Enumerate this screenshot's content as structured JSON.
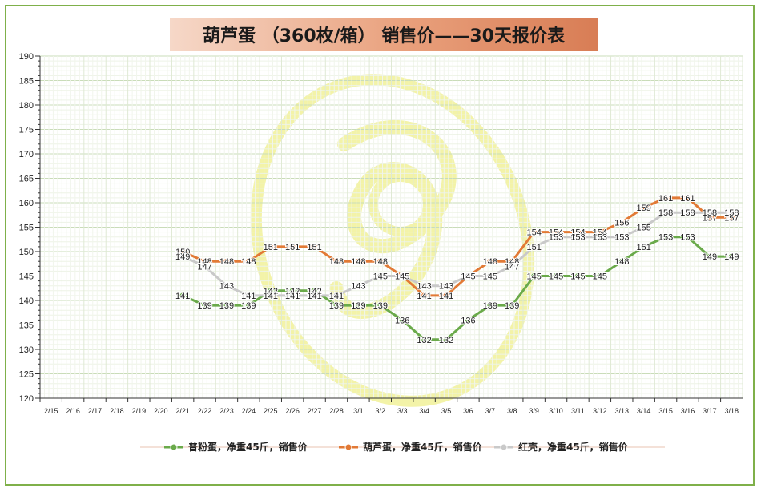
{
  "title": "葫芦蛋 （360枚/箱） 销售价——30天报价表",
  "colors": {
    "series_green": "#6aaa4a",
    "series_orange": "#e27a36",
    "series_gray": "#c9c9c9",
    "frame": "#7fb04a",
    "watermark": "#f3f3a8"
  },
  "chart_data": {
    "type": "line",
    "title": "葫芦蛋 （360枚/箱） 销售价——30天报价表",
    "xlabel": "",
    "ylabel": "",
    "ylim": [
      120,
      190
    ],
    "y_major_ticks": [
      120,
      125,
      130,
      135,
      140,
      145,
      150,
      155,
      160,
      165,
      170,
      175,
      180,
      185,
      190
    ],
    "grid": true,
    "legend_placement": "bottom",
    "categories": [
      "2/15",
      "2/16",
      "2/17",
      "2/18",
      "2/19",
      "2/20",
      "2/21",
      "2/22",
      "2/23",
      "2/24",
      "2/25",
      "2/26",
      "2/27",
      "2/28",
      "3/1",
      "3/2",
      "3/3",
      "3/4",
      "3/5",
      "3/6",
      "3/7",
      "3/8",
      "3/9",
      "3/10",
      "3/11",
      "3/12",
      "3/13",
      "3/14",
      "3/15",
      "3/16",
      "3/17",
      "3/18"
    ],
    "series": [
      {
        "name": "普粉蛋，净重45斤，销售价",
        "color": "#6aaa4a",
        "values": [
          null,
          null,
          null,
          null,
          null,
          null,
          141,
          139,
          139,
          139,
          142,
          142,
          142,
          139,
          139,
          139,
          136,
          132,
          132,
          136,
          139,
          139,
          145,
          145,
          145,
          145,
          148,
          151,
          153,
          153,
          149,
          149
        ]
      },
      {
        "name": "葫芦蛋，净重45斤，销售价",
        "color": "#e27a36",
        "values": [
          null,
          null,
          null,
          null,
          null,
          null,
          150,
          148,
          148,
          148,
          151,
          151,
          151,
          148,
          148,
          148,
          145,
          141,
          141,
          145,
          148,
          148,
          154,
          154,
          154,
          154,
          156,
          159,
          161,
          161,
          157,
          157
        ]
      },
      {
        "name": "红壳，净重45斤，销售价",
        "color": "#c9c9c9",
        "values": [
          null,
          null,
          null,
          null,
          null,
          null,
          149,
          147,
          143,
          141,
          141,
          141,
          141,
          141,
          143,
          145,
          145,
          143,
          143,
          145,
          145,
          147,
          151,
          153,
          153,
          153,
          153,
          155,
          158,
          158,
          158,
          158
        ]
      }
    ]
  }
}
